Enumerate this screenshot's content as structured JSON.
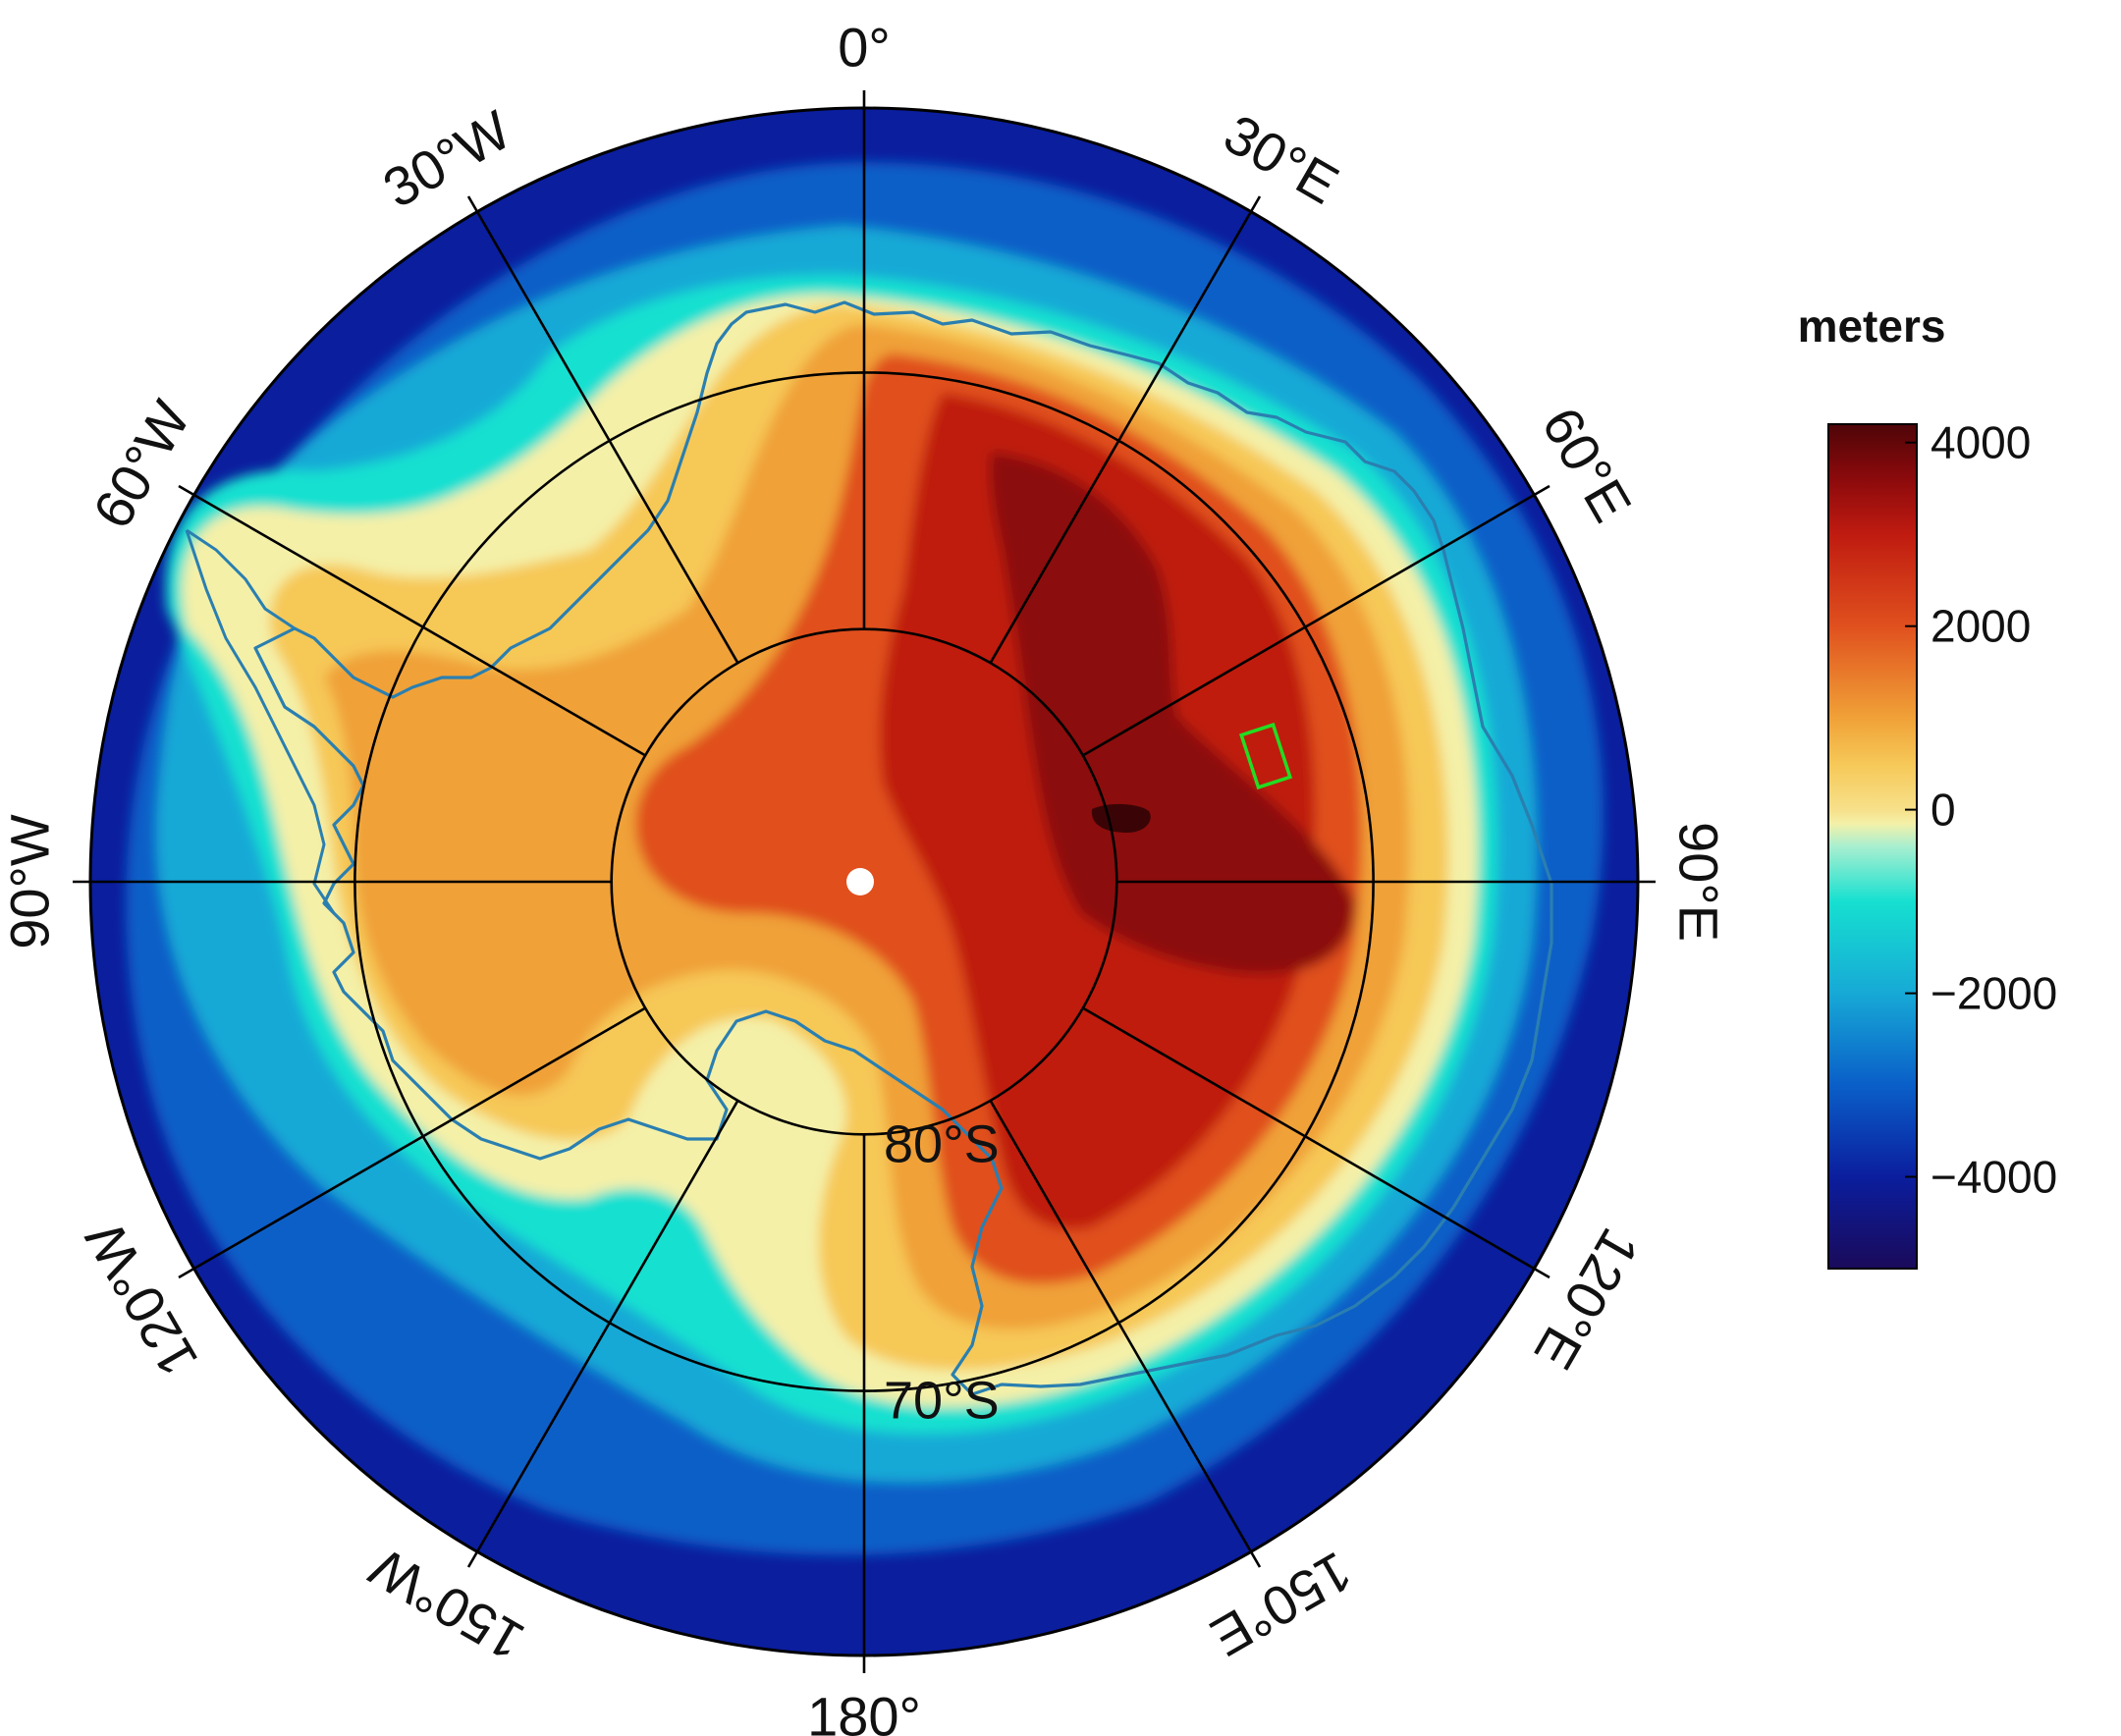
{
  "colorbar": {
    "title": "meters",
    "ticks": [
      {
        "value": 4000,
        "label": "4000"
      },
      {
        "value": 2000,
        "label": "2000"
      },
      {
        "value": 0,
        "label": "0"
      },
      {
        "value": -2000,
        "label": "−2000"
      },
      {
        "value": -4000,
        "label": "−4000"
      }
    ],
    "range": [
      -5000,
      4200
    ],
    "stops": [
      {
        "value": -5000,
        "color": "#1a0a5a"
      },
      {
        "value": -4000,
        "color": "#0b1e9e"
      },
      {
        "value": -3000,
        "color": "#0a5fc8"
      },
      {
        "value": -2000,
        "color": "#17a9d6"
      },
      {
        "value": -1000,
        "color": "#16e0d0"
      },
      {
        "value": -400,
        "color": "#a8efd0"
      },
      {
        "value": -150,
        "color": "#f4f0a8"
      },
      {
        "value": 0,
        "color": "#f7e08a"
      },
      {
        "value": 500,
        "color": "#f6c857"
      },
      {
        "value": 1000,
        "color": "#f0a137"
      },
      {
        "value": 2000,
        "color": "#e0501e"
      },
      {
        "value": 3000,
        "color": "#bf1b10"
      },
      {
        "value": 3600,
        "color": "#8c0a0c"
      },
      {
        "value": 4200,
        "color": "#4e0508"
      }
    ]
  },
  "meridian_labels": [
    {
      "lon": 0,
      "text": "0°"
    },
    {
      "lon": 30,
      "text": "30°E"
    },
    {
      "lon": 60,
      "text": "60°E"
    },
    {
      "lon": 90,
      "text": "90°E"
    },
    {
      "lon": 120,
      "text": "120°E"
    },
    {
      "lon": 150,
      "text": "150°E"
    },
    {
      "lon": 180,
      "text": "180°"
    },
    {
      "lon": -150,
      "text": "150°W"
    },
    {
      "lon": -120,
      "text": "120°W"
    },
    {
      "lon": -90,
      "text": "90°W"
    },
    {
      "lon": -60,
      "text": "60°W"
    },
    {
      "lon": -30,
      "text": "30°W"
    }
  ],
  "parallel_labels": [
    {
      "lat": -80,
      "text": "80°S"
    },
    {
      "lat": -70,
      "text": "70°S"
    }
  ],
  "map": {
    "projection": "south polar stereographic",
    "outer_latitude": -60,
    "pole_marker_color": "#ffffff",
    "study_area_color": "#22dd22",
    "coastline_color": "#2a7fb0",
    "grid_color": "#000000"
  }
}
